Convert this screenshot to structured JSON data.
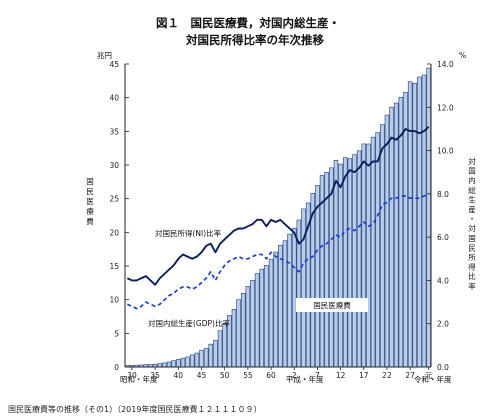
{
  "chart_data": {
    "type": "bar",
    "title_line1": "図１　国民医療費，対国内総生産・",
    "title_line2": "対国民所得比率の年次推移",
    "left_unit": "兆円",
    "right_unit": "%",
    "left_axis_label": "国民医療費",
    "right_axis_label": "対国内総生産・対国民所得比率",
    "left_ticks": [
      "0",
      "5",
      "10",
      "15",
      "20",
      "25",
      "30",
      "35",
      "40",
      "45"
    ],
    "right_ticks": [
      "0.0",
      "2.0",
      "4.0",
      "6.0",
      "8.0",
      "10.0",
      "12.0",
      "14.0"
    ],
    "ylim_left": [
      0,
      45
    ],
    "ylim_right": [
      0,
      14
    ],
    "x_tick_labels": [
      "30",
      "35",
      "40",
      "45",
      "50",
      "55",
      "60",
      "2",
      "7",
      "12",
      "17",
      "22",
      "27",
      "元"
    ],
    "x_tick_years": [
      1955,
      1960,
      1965,
      1970,
      1975,
      1980,
      1985,
      1990,
      1995,
      2000,
      2005,
      2010,
      2015,
      2019
    ],
    "era_labels": {
      "showa": "昭和・年度",
      "heisei": "平成・年度",
      "reiwa": "令和・年度"
    },
    "series_labels": {
      "bars": "国民医療費",
      "ni": "対国民所得(NI)比率",
      "gdp": "対国内総生産(GDP)比率"
    },
    "years": [
      1954,
      1955,
      1956,
      1957,
      1958,
      1959,
      1960,
      1961,
      1962,
      1963,
      1964,
      1965,
      1966,
      1967,
      1968,
      1969,
      1970,
      1971,
      1972,
      1973,
      1974,
      1975,
      1976,
      1977,
      1978,
      1979,
      1980,
      1981,
      1982,
      1983,
      1984,
      1985,
      1986,
      1987,
      1988,
      1989,
      1990,
      1991,
      1992,
      1993,
      1994,
      1995,
      1996,
      1997,
      1998,
      1999,
      2000,
      2001,
      2002,
      2003,
      2004,
      2005,
      2006,
      2007,
      2008,
      2009,
      2010,
      2011,
      2012,
      2013,
      2014,
      2015,
      2016,
      2017,
      2018,
      2019
    ],
    "bars_trillion_yen": [
      0.22,
      0.24,
      0.26,
      0.3,
      0.34,
      0.38,
      0.41,
      0.51,
      0.61,
      0.75,
      0.94,
      1.12,
      1.3,
      1.5,
      1.8,
      2.07,
      2.5,
      2.75,
      3.39,
      3.95,
      5.38,
      6.48,
      7.64,
      8.57,
      10.0,
      10.95,
      11.98,
      12.88,
      13.86,
      14.54,
      15.09,
      16.02,
      17.07,
      18.08,
      18.75,
      19.73,
      20.61,
      21.83,
      23.48,
      24.36,
      25.79,
      26.96,
      28.45,
      28.91,
      29.58,
      30.7,
      30.14,
      31.1,
      30.95,
      31.54,
      32.11,
      33.13,
      33.12,
      34.14,
      34.81,
      36.0,
      37.42,
      38.59,
      39.21,
      40.06,
      40.81,
      42.36,
      42.14,
      43.07,
      43.36,
      44.39
    ],
    "ni_ratio_pct": [
      4.1,
      4.0,
      4.0,
      4.1,
      4.2,
      4.0,
      3.8,
      4.1,
      4.3,
      4.5,
      4.7,
      5.0,
      5.2,
      5.1,
      5.0,
      5.1,
      5.3,
      5.6,
      5.7,
      5.3,
      5.7,
      5.9,
      6.1,
      6.3,
      6.4,
      6.4,
      6.5,
      6.6,
      6.8,
      6.8,
      6.5,
      6.8,
      6.7,
      6.8,
      6.6,
      6.4,
      6.2,
      5.7,
      5.9,
      6.5,
      7.1,
      7.4,
      7.6,
      7.8,
      8.0,
      8.6,
      8.3,
      8.8,
      9.1,
      9.0,
      9.2,
      9.5,
      9.3,
      9.5,
      9.5,
      10.1,
      10.3,
      10.6,
      10.5,
      10.7,
      11.0,
      10.9,
      10.9,
      10.8,
      10.9,
      11.1
    ],
    "gdp_ratio_pct": [
      2.9,
      2.8,
      2.7,
      2.8,
      3.0,
      2.9,
      2.8,
      2.9,
      3.1,
      3.3,
      3.4,
      3.6,
      3.7,
      3.7,
      3.6,
      3.7,
      3.9,
      4.1,
      4.4,
      4.0,
      4.4,
      4.7,
      4.9,
      5.0,
      5.1,
      5.0,
      5.0,
      5.1,
      5.2,
      5.2,
      5.0,
      5.3,
      5.1,
      5.0,
      4.9,
      4.8,
      4.6,
      4.4,
      4.8,
      5.0,
      5.1,
      5.4,
      5.6,
      5.7,
      5.9,
      6.1,
      6.0,
      6.3,
      6.4,
      6.3,
      6.5,
      6.7,
      6.5,
      6.6,
      7.0,
      7.5,
      7.6,
      7.8,
      7.8,
      7.9,
      7.9,
      7.8,
      7.8,
      7.8,
      7.9,
      8.0
    ],
    "colors": {
      "bar_fill": "#b8cde8",
      "bar_edge": "#1f3a7a",
      "ni_line": "#0a1f5c",
      "gdp_line": "#1a3fd6",
      "axis": "#222222"
    },
    "legend": "inline-labels",
    "grid": false
  },
  "footer": {
    "caption": "国民医療費等の推移（その1）（2019年度国民医療費１２１１１０９）"
  }
}
